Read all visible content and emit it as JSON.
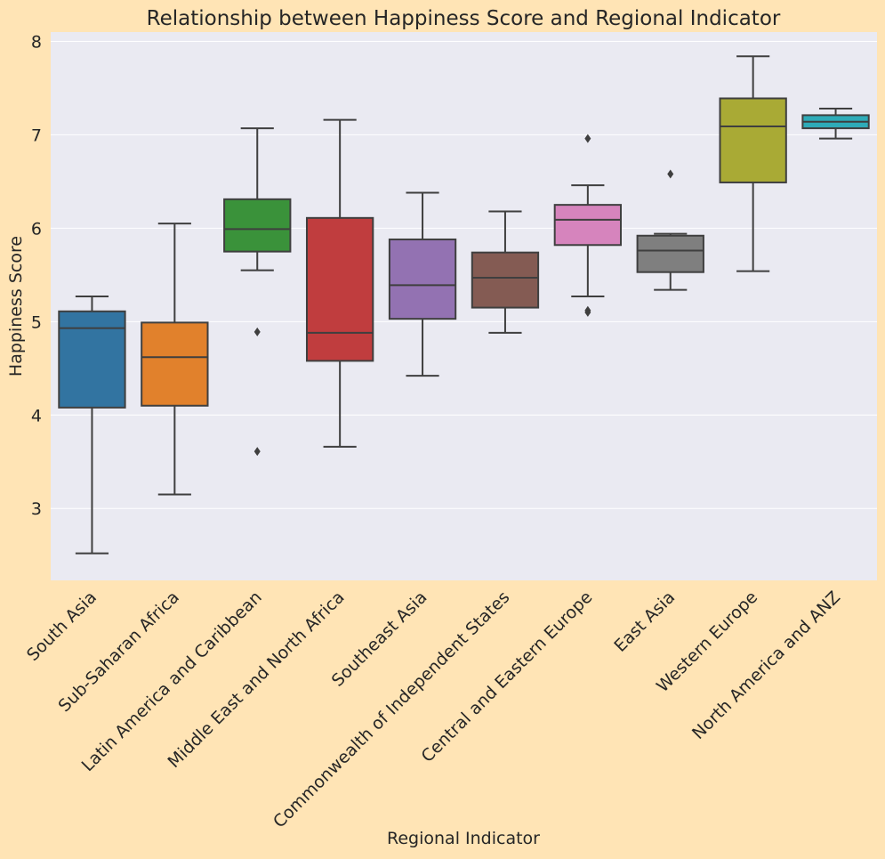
{
  "colors": {
    "figure_background": "#FFE4B5",
    "plot_background": "#EAEAF2",
    "grid": "#FFFFFF",
    "box_edge": "#3F3F3F"
  },
  "chart_data": {
    "type": "box",
    "title": "Relationship between Happiness Score and Regional Indicator",
    "xlabel": "Regional Indicator",
    "ylabel": "Happiness Score",
    "ylim": [
      2.23,
      8.1
    ],
    "yticks": [
      3,
      4,
      5,
      6,
      7,
      8
    ],
    "grid": true,
    "categories": [
      "South Asia",
      "Sub-Saharan Africa",
      "Latin America and Caribbean",
      "Middle East and North Africa",
      "Southeast Asia",
      "Commonwealth of Independent States",
      "Central and Eastern Europe",
      "East Asia",
      "Western Europe",
      "North America and ANZ"
    ],
    "boxes": [
      {
        "whisker_low": 2.52,
        "q1": 4.08,
        "median": 4.93,
        "q3": 5.11,
        "whisker_high": 5.27,
        "outliers": [],
        "color": "#3274A1"
      },
      {
        "whisker_low": 3.15,
        "q1": 4.1,
        "median": 4.62,
        "q3": 4.99,
        "whisker_high": 6.05,
        "outliers": [],
        "color": "#E1812C"
      },
      {
        "whisker_low": 5.55,
        "q1": 5.75,
        "median": 5.99,
        "q3": 6.31,
        "whisker_high": 7.07,
        "outliers": [
          4.89,
          3.61
        ],
        "color": "#3A923A"
      },
      {
        "whisker_low": 3.66,
        "q1": 4.58,
        "median": 4.88,
        "q3": 6.11,
        "whisker_high": 7.16,
        "outliers": [],
        "color": "#C03D3E"
      },
      {
        "whisker_low": 4.42,
        "q1": 5.03,
        "median": 5.39,
        "q3": 5.88,
        "whisker_high": 6.38,
        "outliers": [],
        "color": "#9372B2"
      },
      {
        "whisker_low": 4.88,
        "q1": 5.15,
        "median": 5.47,
        "q3": 5.74,
        "whisker_high": 6.18,
        "outliers": [],
        "color": "#845B53"
      },
      {
        "whisker_low": 5.27,
        "q1": 5.82,
        "median": 6.09,
        "q3": 6.25,
        "whisker_high": 6.46,
        "outliers": [
          6.96,
          5.12,
          5.1
        ],
        "color": "#D684BD"
      },
      {
        "whisker_low": 5.34,
        "q1": 5.53,
        "median": 5.76,
        "q3": 5.92,
        "whisker_high": 5.94,
        "outliers": [
          6.58
        ],
        "color": "#7F7F7F"
      },
      {
        "whisker_low": 5.54,
        "q1": 6.49,
        "median": 7.09,
        "q3": 7.39,
        "whisker_high": 7.84,
        "outliers": [],
        "color": "#A9AA35"
      },
      {
        "whisker_low": 6.96,
        "q1": 7.07,
        "median": 7.14,
        "q3": 7.21,
        "whisker_high": 7.28,
        "outliers": [],
        "color": "#2EABB8"
      }
    ]
  }
}
